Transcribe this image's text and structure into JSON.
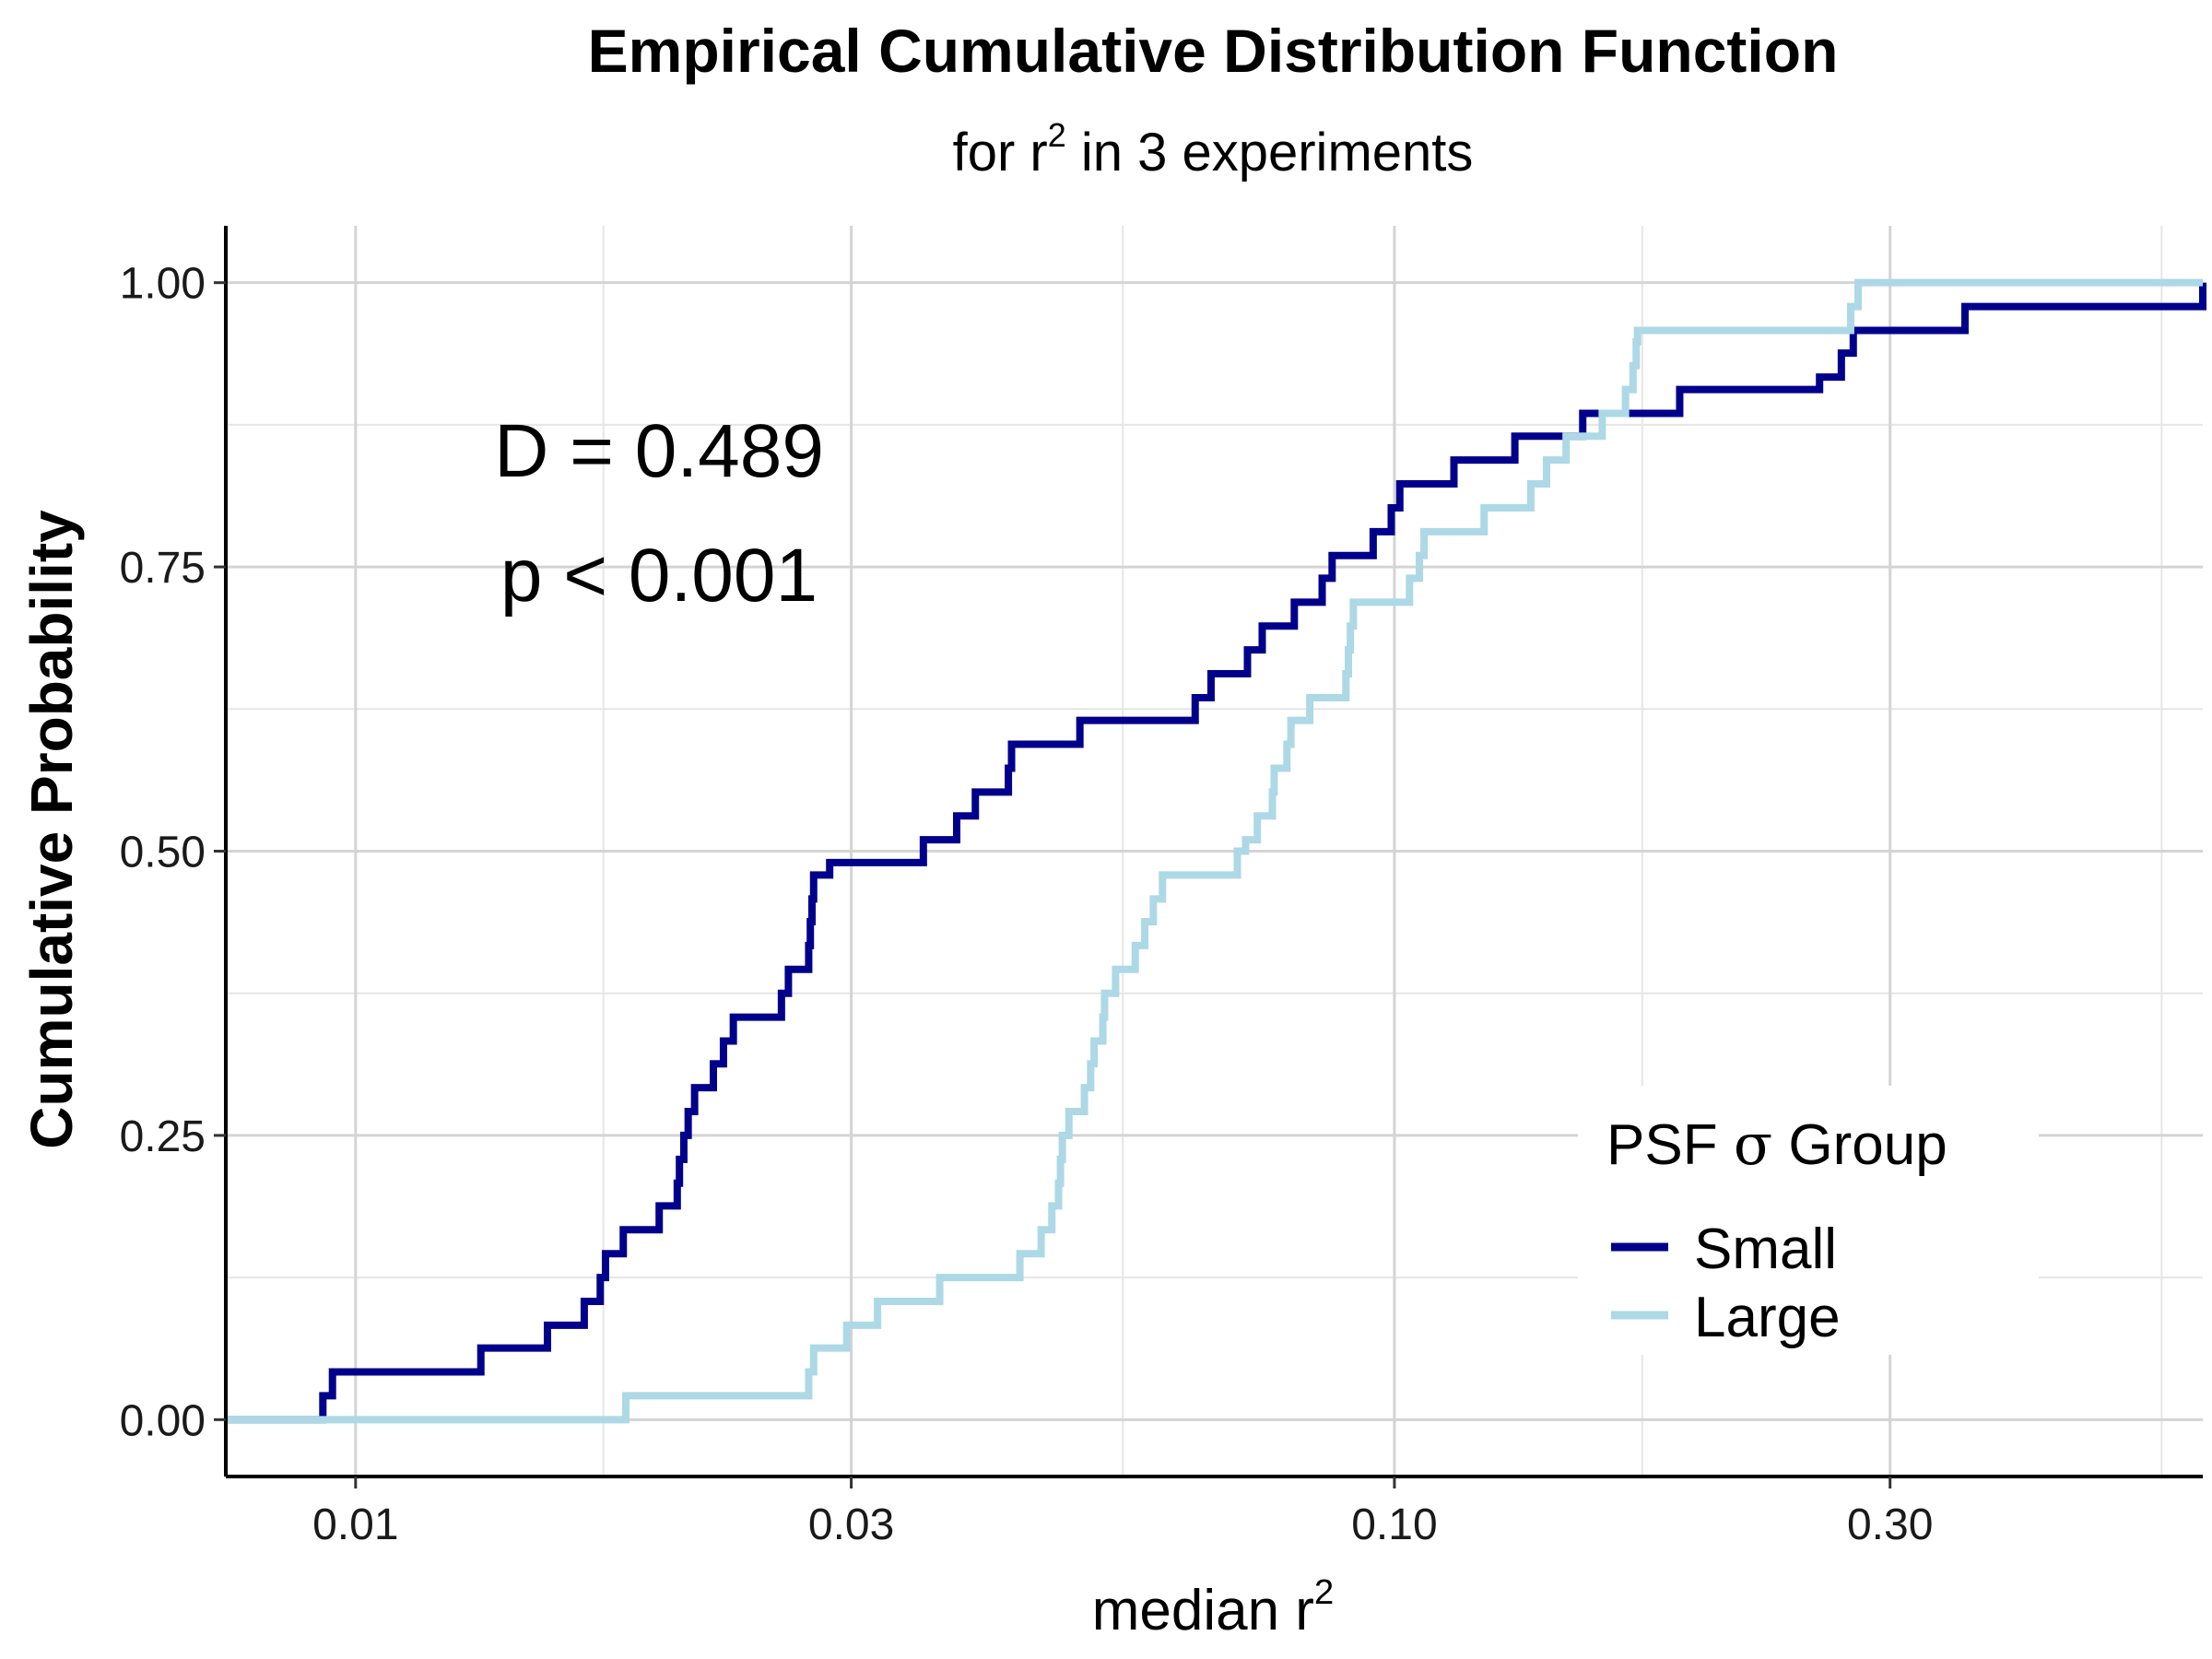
{
  "chart_data": {
    "type": "line",
    "step": true,
    "title": "Empirical Cumulative Distribution Function",
    "subtitle_prefix": "for r",
    "subtitle_sup": "2",
    "subtitle_suffix": " in 3 experiments",
    "xlabel": "median r",
    "xlabel_sup": "2",
    "ylabel": "Cumulative Probability",
    "x_scale": "log10",
    "xlim": [
      0.0075,
      0.6
    ],
    "ylim": [
      -0.05,
      1.05
    ],
    "x_ticks": [
      0.01,
      0.03,
      0.1,
      0.3
    ],
    "x_tick_labels": [
      "0.01",
      "0.03",
      "0.10",
      "0.30"
    ],
    "y_ticks": [
      0,
      0.25,
      0.5,
      0.75,
      1
    ],
    "y_tick_labels": [
      "0.00",
      "0.25",
      "0.50",
      "0.75",
      "1.00"
    ],
    "grid": true,
    "legend_position": "bottom-right",
    "legend_title_prefix": "PSF ",
    "legend_title_symbol": "σ",
    "legend_title_suffix": " Group",
    "annotations": [
      "D = 0.489",
      "p < 0.001"
    ],
    "series": [
      {
        "name": "Small",
        "color": "#00008B",
        "steps": [
          [
            0.0093,
            0.021
          ],
          [
            0.0095,
            0.042
          ],
          [
            0.0132,
            0.063
          ],
          [
            0.0153,
            0.083
          ],
          [
            0.0166,
            0.104
          ],
          [
            0.0172,
            0.125
          ],
          [
            0.0174,
            0.146
          ],
          [
            0.0181,
            0.167
          ],
          [
            0.0196,
            0.188
          ],
          [
            0.0204,
            0.208
          ],
          [
            0.0205,
            0.229
          ],
          [
            0.0207,
            0.25
          ],
          [
            0.0209,
            0.271
          ],
          [
            0.0212,
            0.292
          ],
          [
            0.0221,
            0.313
          ],
          [
            0.0226,
            0.333
          ],
          [
            0.0231,
            0.354
          ],
          [
            0.0257,
            0.375
          ],
          [
            0.0261,
            0.396
          ],
          [
            0.0273,
            0.417
          ],
          [
            0.0274,
            0.438
          ],
          [
            0.0275,
            0.458
          ],
          [
            0.0276,
            0.479
          ],
          [
            0.0286,
            0.49
          ],
          [
            0.0352,
            0.51
          ],
          [
            0.0379,
            0.531
          ],
          [
            0.0395,
            0.552
          ],
          [
            0.0425,
            0.573
          ],
          [
            0.0428,
            0.594
          ],
          [
            0.0498,
            0.615
          ],
          [
            0.0643,
            0.635
          ],
          [
            0.0666,
            0.656
          ],
          [
            0.0722,
            0.677
          ],
          [
            0.0746,
            0.698
          ],
          [
            0.0801,
            0.719
          ],
          [
            0.0852,
            0.74
          ],
          [
            0.0871,
            0.76
          ],
          [
            0.0954,
            0.781
          ],
          [
            0.0993,
            0.802
          ],
          [
            0.1012,
            0.823
          ],
          [
            0.1141,
            0.844
          ],
          [
            0.1306,
            0.865
          ],
          [
            0.1518,
            0.885
          ],
          [
            0.1882,
            0.906
          ],
          [
            0.2566,
            0.917
          ],
          [
            0.2693,
            0.938
          ],
          [
            0.2765,
            0.958
          ],
          [
            0.3542,
            0.979
          ],
          [
            4.27,
            1.0
          ]
        ]
      },
      {
        "name": "Large",
        "color": "#ADD8E6",
        "steps": [
          [
            0.0182,
            0.021
          ],
          [
            0.0273,
            0.042
          ],
          [
            0.0276,
            0.063
          ],
          [
            0.0297,
            0.083
          ],
          [
            0.0318,
            0.104
          ],
          [
            0.0365,
            0.125
          ],
          [
            0.0436,
            0.146
          ],
          [
            0.0457,
            0.167
          ],
          [
            0.0468,
            0.188
          ],
          [
            0.0475,
            0.208
          ],
          [
            0.0477,
            0.229
          ],
          [
            0.0479,
            0.25
          ],
          [
            0.0486,
            0.271
          ],
          [
            0.0503,
            0.292
          ],
          [
            0.051,
            0.313
          ],
          [
            0.0514,
            0.333
          ],
          [
            0.0524,
            0.354
          ],
          [
            0.0526,
            0.375
          ],
          [
            0.0539,
            0.396
          ],
          [
            0.0563,
            0.417
          ],
          [
            0.0575,
            0.438
          ],
          [
            0.0586,
            0.458
          ],
          [
            0.0598,
            0.479
          ],
          [
            0.0706,
            0.5
          ],
          [
            0.0719,
            0.51
          ],
          [
            0.0738,
            0.531
          ],
          [
            0.0763,
            0.552
          ],
          [
            0.0766,
            0.573
          ],
          [
            0.0788,
            0.594
          ],
          [
            0.0795,
            0.615
          ],
          [
            0.0829,
            0.635
          ],
          [
            0.0898,
            0.656
          ],
          [
            0.0903,
            0.677
          ],
          [
            0.0907,
            0.698
          ],
          [
            0.0913,
            0.719
          ],
          [
            0.1034,
            0.74
          ],
          [
            0.1057,
            0.76
          ],
          [
            0.1068,
            0.781
          ],
          [
            0.122,
            0.802
          ],
          [
            0.1353,
            0.823
          ],
          [
            0.1401,
            0.844
          ],
          [
            0.1463,
            0.865
          ],
          [
            0.1585,
            0.885
          ],
          [
            0.1669,
            0.906
          ],
          [
            0.1697,
            0.927
          ],
          [
            0.1709,
            0.948
          ],
          [
            0.1714,
            0.958
          ],
          [
            0.2749,
            0.979
          ],
          [
            0.2795,
            1.0
          ]
        ]
      }
    ]
  }
}
